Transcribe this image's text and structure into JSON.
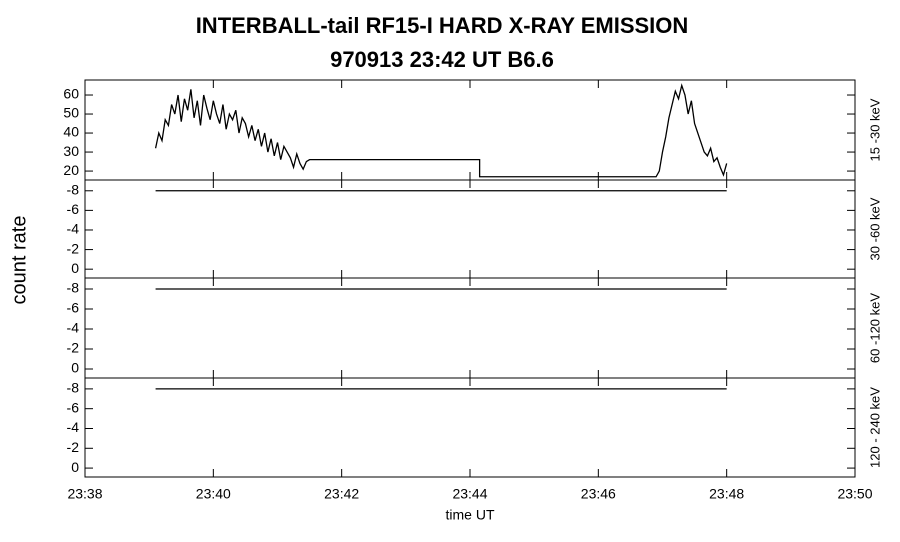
{
  "chart_data": [
    {
      "type": "line",
      "title": "INTERBALL-tail  RF15-I  HARD  X-RAY  EMISSION",
      "subtitle": "970913     23:42 UT     B6.6",
      "ylabel": "count rate",
      "right_label": "15 -30 keV",
      "xlim": [
        1418,
        1430
      ],
      "ylim": [
        15.3,
        67.9
      ],
      "yticks": [
        20,
        30,
        40,
        50,
        60
      ],
      "xticks": [
        1418,
        1420,
        1422,
        1424,
        1426,
        1428,
        1430
      ],
      "series": [
        {
          "color": "#000000",
          "x": [
            1419.1,
            1419.15,
            1419.2,
            1419.25,
            1419.3,
            1419.35,
            1419.4,
            1419.45,
            1419.5,
            1419.55,
            1419.6,
            1419.65,
            1419.7,
            1419.75,
            1419.8,
            1419.85,
            1419.9,
            1419.95,
            1420.0,
            1420.05,
            1420.1,
            1420.15,
            1420.2,
            1420.25,
            1420.3,
            1420.35,
            1420.4,
            1420.45,
            1420.5,
            1420.55,
            1420.6,
            1420.65,
            1420.7,
            1420.75,
            1420.8,
            1420.85,
            1420.9,
            1420.95,
            1421.0,
            1421.05,
            1421.1,
            1421.15,
            1421.2,
            1421.25,
            1421.3,
            1421.35,
            1421.4,
            1421.45,
            1421.5,
            1424.15,
            1424.15,
            1426.9,
            1426.95,
            1427.0,
            1427.05,
            1427.1,
            1427.15,
            1427.2,
            1427.25,
            1427.3,
            1427.35,
            1427.4,
            1427.45,
            1427.5,
            1427.55,
            1427.6,
            1427.65,
            1427.7,
            1427.75,
            1427.8,
            1427.85,
            1427.9,
            1427.95,
            1428.0
          ],
          "values": [
            32,
            40,
            36,
            47,
            44,
            55,
            50,
            60,
            46,
            58,
            52,
            63,
            48,
            57,
            44,
            60,
            53,
            47,
            57,
            50,
            45,
            55,
            42,
            50,
            47,
            52,
            40,
            48,
            45,
            38,
            44,
            36,
            42,
            33,
            40,
            30,
            37,
            28,
            35,
            26,
            33,
            30,
            27,
            22,
            29,
            24,
            21,
            25,
            26,
            26,
            17,
            17,
            20,
            30,
            38,
            48,
            55,
            62,
            58,
            65,
            60,
            50,
            57,
            45,
            40,
            35,
            30,
            28,
            32,
            25,
            27,
            22,
            18,
            24
          ]
        }
      ]
    },
    {
      "type": "line",
      "right_label": "30 -60 keV",
      "xlim": [
        1418,
        1430
      ],
      "ylim": [
        0.9,
        -9.1
      ],
      "yticks": [
        -8,
        -6,
        -4,
        -2,
        0
      ],
      "xticks": [
        1418,
        1420,
        1422,
        1424,
        1426,
        1428,
        1430
      ],
      "series": [
        {
          "color": "#000000",
          "x": [
            1419.1,
            1428.0
          ],
          "values": [
            -8,
            -8
          ]
        }
      ]
    },
    {
      "type": "line",
      "right_label": "60 -120 keV",
      "xlim": [
        1418,
        1430
      ],
      "ylim": [
        0.9,
        -9.1
      ],
      "yticks": [
        -8,
        -6,
        -4,
        -2,
        0
      ],
      "xticks": [
        1418,
        1420,
        1422,
        1424,
        1426,
        1428,
        1430
      ],
      "series": [
        {
          "color": "#000000",
          "x": [
            1419.1,
            1428.0
          ],
          "values": [
            -8,
            -8
          ]
        }
      ]
    },
    {
      "type": "line",
      "right_label": "120 - 240 keV",
      "xlabel": "time UT",
      "xlim": [
        1418,
        1430
      ],
      "ylim": [
        0.9,
        -9.1
      ],
      "yticks": [
        -8,
        -6,
        -4,
        -2,
        0
      ],
      "xticks": [
        {
          "value": 1418,
          "label": "23:38"
        },
        {
          "value": 1420,
          "label": "23:40"
        },
        {
          "value": 1422,
          "label": "23:42"
        },
        {
          "value": 1424,
          "label": "23:44"
        },
        {
          "value": 1426,
          "label": "23:46"
        },
        {
          "value": 1428,
          "label": "23:48"
        },
        {
          "value": 1430,
          "label": "23:50"
        }
      ],
      "series": [
        {
          "color": "#000000",
          "x": [
            1419.1,
            1428.0
          ],
          "values": [
            -8,
            -8
          ]
        }
      ]
    }
  ]
}
